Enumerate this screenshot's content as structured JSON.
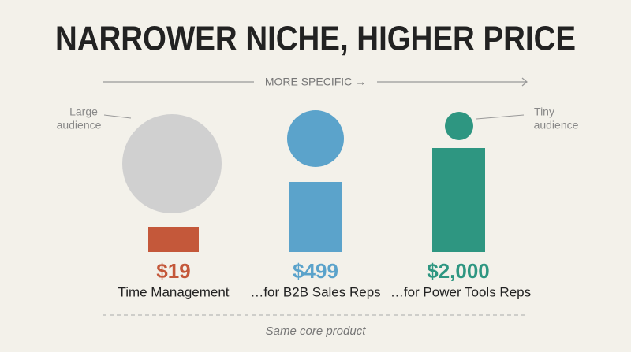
{
  "title": "NARROWER NICHE, HIGHER PRICE",
  "axis_label": "MORE SPECIFIC →",
  "annotations": [
    {
      "lines": [
        "Large",
        "audience"
      ]
    },
    {
      "lines": [
        "Tiny",
        "audience"
      ]
    }
  ],
  "items": [
    {
      "price": "$19",
      "label": "Time Management",
      "color": "#c4583a"
    },
    {
      "price": "$499",
      "label": "…for B2B Sales Reps",
      "color": "#5ba3cb"
    },
    {
      "price": "$2,000",
      "label": "…for Power Tools Reps",
      "color": "#2e9681"
    }
  ],
  "footer": "Same core product"
}
